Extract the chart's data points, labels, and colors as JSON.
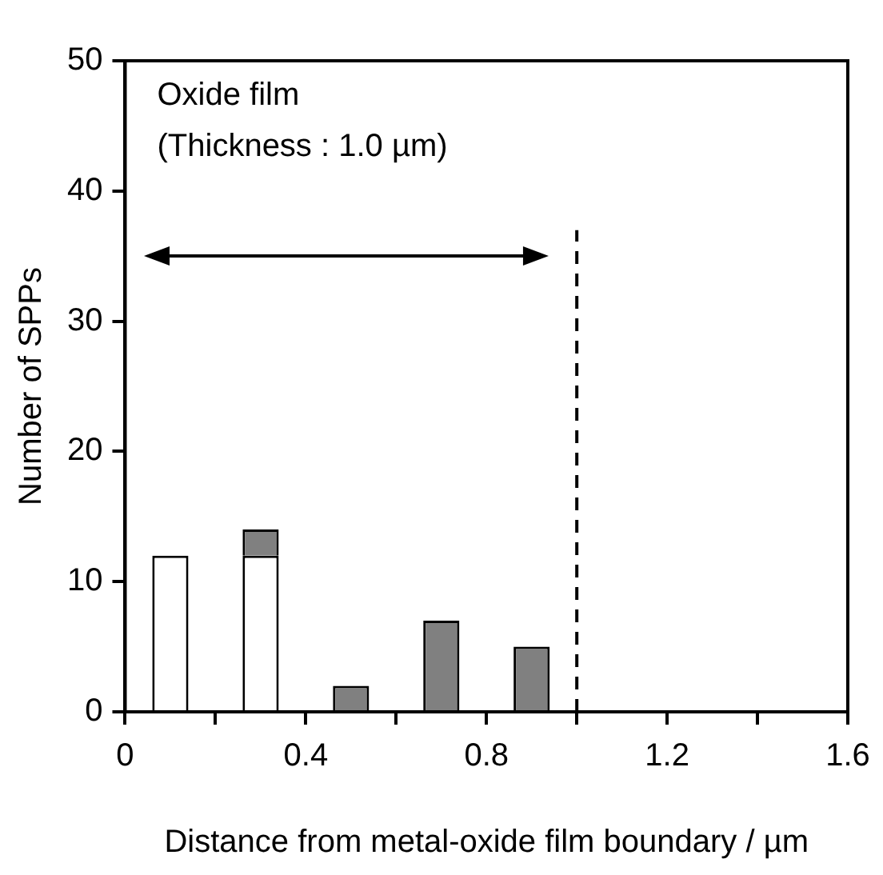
{
  "chart_data": {
    "type": "bar",
    "stacked": true,
    "xlabel": "Distance from metal-oxide film boundary / µm",
    "ylabel": "Number of SPPs",
    "x": [
      0.1,
      0.3,
      0.5,
      0.7,
      0.9
    ],
    "series": [
      {
        "color": "#ffffff",
        "values": [
          12,
          12,
          0,
          0,
          0
        ]
      },
      {
        "color": "#808080",
        "values": [
          0,
          2,
          2,
          7,
          5
        ]
      }
    ],
    "xlim": [
      0,
      1.6
    ],
    "xticks": [
      0,
      {
        "value": 0.2,
        "label": null
      },
      0.4,
      {
        "value": 0.6,
        "label": null
      },
      0.8,
      {
        "value": 1.0,
        "label": null
      },
      1.2,
      {
        "value": 1.4,
        "label": null
      },
      1.6
    ],
    "ylim": [
      0,
      50
    ],
    "yticks": [
      0,
      10,
      20,
      30,
      40,
      50
    ],
    "ref_lines": [
      {
        "axis": "x",
        "value": 1.0,
        "line_style": "dashed",
        "color": "#000000"
      }
    ],
    "annotations": [
      "Oxide film",
      "(Thickness : 1.0 µm)"
    ],
    "grid": false,
    "legend": false
  }
}
